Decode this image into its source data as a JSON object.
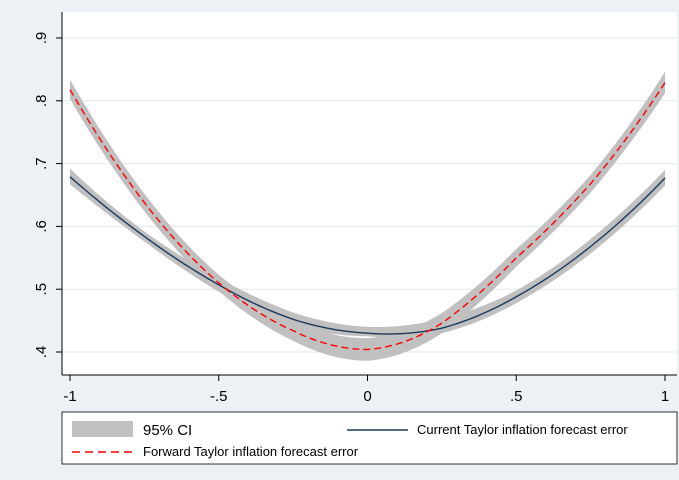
{
  "chart_data": {
    "type": "line",
    "title": "",
    "xlabel": "",
    "ylabel": "",
    "xlim": [
      -1,
      1
    ],
    "ylim": [
      0.4,
      0.9
    ],
    "xticks": [
      -1,
      -0.5,
      0,
      0.5,
      1
    ],
    "xtick_labels": [
      "-1",
      "-.5",
      "0",
      ".5",
      "1"
    ],
    "yticks": [
      0.4,
      0.5,
      0.6,
      0.7,
      0.8,
      0.9
    ],
    "ytick_labels": [
      ".4",
      ".5",
      ".6",
      ".7",
      ".8",
      ".9"
    ],
    "grid": "horizontal",
    "legend_position": "bottom",
    "x": [
      -1,
      -0.75,
      -0.5,
      -0.25,
      0,
      0.25,
      0.5,
      0.75,
      1
    ],
    "series": [
      {
        "name": "Current Taylor inflation forecast error",
        "color": "#1a3a5c",
        "style": "solid",
        "values": [
          0.679,
          0.584,
          0.507,
          0.452,
          0.43,
          0.438,
          0.488,
          0.568,
          0.677
        ]
      },
      {
        "name": "Forward Taylor inflation forecast error",
        "color": "#ff0000",
        "style": "dashed",
        "values": [
          0.818,
          0.638,
          0.51,
          0.434,
          0.404,
          0.446,
          0.55,
          0.668,
          0.829
        ]
      }
    ],
    "ci_bands": [
      {
        "label": "95% CI",
        "color": "#c0c0c0",
        "lower": [
          0.667,
          0.576,
          0.496,
          0.441,
          0.425,
          0.43,
          0.478,
          0.557,
          0.665
        ],
        "upper": [
          0.692,
          0.592,
          0.518,
          0.463,
          0.44,
          0.453,
          0.498,
          0.58,
          0.69
        ]
      },
      {
        "label": "95% CI",
        "color": "#c0c0c0",
        "lower": [
          0.803,
          0.624,
          0.497,
          0.418,
          0.386,
          0.43,
          0.536,
          0.654,
          0.812
        ],
        "upper": [
          0.834,
          0.652,
          0.523,
          0.45,
          0.422,
          0.462,
          0.564,
          0.682,
          0.846
        ]
      }
    ],
    "legend": {
      "ci_label": "95% CI",
      "current_label": "Current Taylor inflation forecast error",
      "forward_label": "Forward Taylor inflation forecast error"
    }
  }
}
